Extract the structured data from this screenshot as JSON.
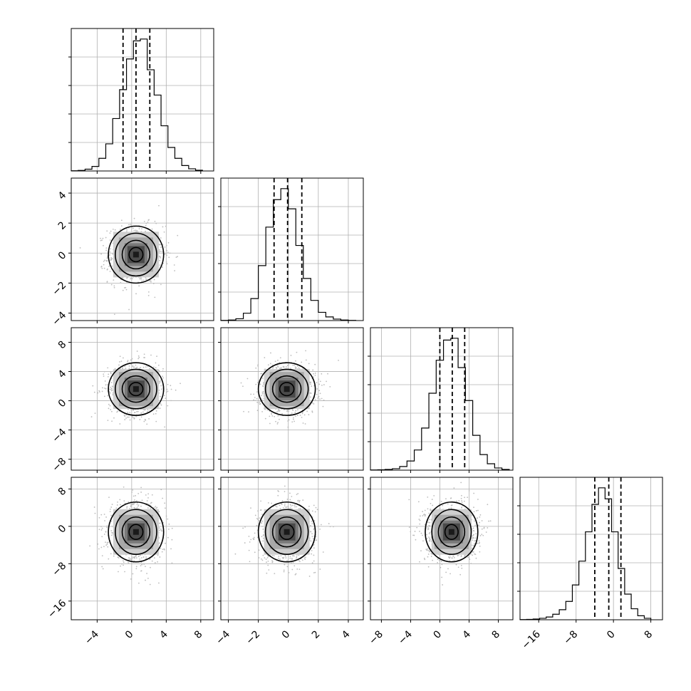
{
  "chart_data": {
    "type": "corner",
    "grid": true,
    "ticks_rotation_deg": 45,
    "quantiles": [
      0.16,
      0.5,
      0.84
    ],
    "parameters": [
      {
        "range": [
          -7,
          9.5
        ],
        "ticks": [
          -4,
          0,
          4,
          8
        ],
        "mean": 0.5,
        "std": 1.6,
        "quantile_values": [
          -1.0,
          0.5,
          2.1
        ],
        "hist_bins": [
          -7,
          -6.2,
          -5.4,
          -4.6,
          -3.8,
          -3.0,
          -2.2,
          -1.4,
          -0.6,
          0.2,
          1.0,
          1.8,
          2.6,
          3.4,
          4.2,
          5.0,
          5.8,
          6.6,
          7.4,
          8.2
        ],
        "hist_counts": [
          1,
          3,
          10,
          25,
          70,
          150,
          290,
          450,
          620,
          720,
          730,
          560,
          420,
          250,
          130,
          70,
          30,
          12,
          4
        ]
      },
      {
        "range": [
          -4.5,
          5.0
        ],
        "ticks": [
          -4,
          -2,
          0,
          2,
          4
        ],
        "mean": -0.1,
        "std": 0.95,
        "quantile_values": [
          -0.95,
          -0.05,
          0.9
        ],
        "hist_bins": [
          -4.5,
          -4.0,
          -3.5,
          -3.0,
          -2.5,
          -2.0,
          -1.5,
          -1.0,
          -0.5,
          0.0,
          0.5,
          1.0,
          1.5,
          2.0,
          2.5,
          3.0,
          3.5,
          4.0,
          4.5
        ],
        "hist_counts": [
          1,
          3,
          10,
          40,
          120,
          300,
          510,
          660,
          720,
          610,
          410,
          230,
          110,
          45,
          20,
          8,
          3,
          1
        ]
      },
      {
        "range": [
          -9.5,
          10.0
        ],
        "ticks": [
          -8,
          -4,
          0,
          4,
          8
        ],
        "mean": 1.6,
        "std": 1.8,
        "quantile_values": [
          0.0,
          1.7,
          3.4
        ],
        "hist_bins": [
          -9.5,
          -8.5,
          -7.5,
          -6.5,
          -5.5,
          -4.5,
          -3.5,
          -2.5,
          -1.5,
          -0.5,
          0.5,
          1.5,
          2.5,
          3.5,
          4.5,
          5.5,
          6.5,
          7.5,
          8.5,
          9.5
        ],
        "hist_counts": [
          1,
          2,
          4,
          8,
          20,
          50,
          110,
          230,
          420,
          600,
          710,
          720,
          560,
          380,
          190,
          85,
          35,
          12,
          4
        ]
      },
      {
        "range": [
          -20,
          10.5
        ],
        "ticks": [
          -16,
          -8,
          0,
          8
        ],
        "mean": -1.2,
        "std": 3.2,
        "quantile_values": [
          -4.0,
          -1.0,
          1.6
        ],
        "hist_bins": [
          -20,
          -18.6,
          -17.2,
          -15.8,
          -14.4,
          -13.0,
          -11.6,
          -10.2,
          -8.8,
          -7.4,
          -6.0,
          -4.6,
          -3.2,
          -1.8,
          -0.4,
          1.0,
          2.4,
          3.8,
          5.2,
          6.6,
          8.0
        ],
        "hist_counts": [
          1,
          2,
          4,
          8,
          15,
          30,
          55,
          100,
          190,
          320,
          480,
          630,
          720,
          660,
          480,
          280,
          140,
          60,
          22,
          8
        ]
      }
    ]
  }
}
